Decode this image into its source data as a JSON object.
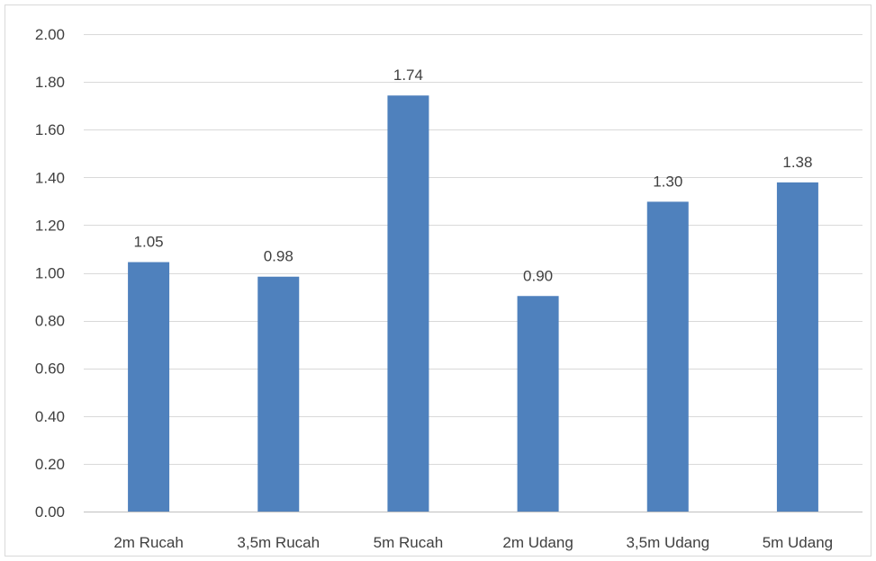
{
  "chart_data": {
    "type": "bar",
    "categories": [
      "2m Rucah",
      "3,5m Rucah",
      "5m Rucah",
      "2m Udang",
      "3,5m Udang",
      "5m Udang"
    ],
    "values": [
      1.045,
      0.984,
      1.743,
      0.903,
      1.298,
      1.379
    ],
    "data_labels": [
      "1.05",
      "0.98",
      "1.74",
      "0.90",
      "1.30",
      "1.38"
    ],
    "ylim": [
      0,
      2.0
    ],
    "yticks": [
      "0.00",
      "0.20",
      "0.40",
      "0.60",
      "0.80",
      "1.00",
      "1.20",
      "1.40",
      "1.60",
      "1.80",
      "2.00"
    ],
    "grid": true,
    "legend": "none",
    "bar_color": "#4f81bd",
    "title": "",
    "xlabel": "",
    "ylabel": ""
  }
}
